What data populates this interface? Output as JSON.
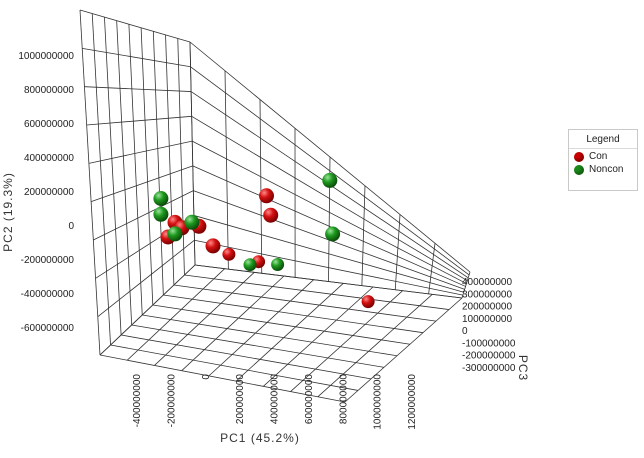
{
  "chart_data": {
    "type": "scatter",
    "title": "",
    "xlabel": "PC1 (45.2%)",
    "ylabel": "PC2 (19.3%)",
    "zlabel": "PC3",
    "grid": true,
    "legend_placement": "right",
    "legend_title": "Legend",
    "x_ticks": [
      "-400000000",
      "-200000000",
      "0",
      "200000000",
      "400000000",
      "600000000",
      "800000000",
      "1000000000",
      "1200000000"
    ],
    "y_ticks": [
      "-600000000",
      "-400000000",
      "-200000000",
      "0",
      "200000000",
      "400000000",
      "600000000",
      "800000000",
      "1000000000"
    ],
    "z_ticks": [
      "400000000",
      "300000000",
      "200000000",
      "100000000",
      "0",
      "-100000000",
      "-200000000",
      "-300000000"
    ],
    "series": [
      {
        "name": "Con",
        "color": "#cc0000",
        "points": [
          {
            "x": -350000000,
            "y": 120000000,
            "z": 150000000
          },
          {
            "x": -300000000,
            "y": 230000000,
            "z": 150000000
          },
          {
            "x": -250000000,
            "y": 200000000,
            "z": 150000000
          },
          {
            "x": -130000000,
            "y": 230000000,
            "z": 150000000
          },
          {
            "x": -30000000,
            "y": 110000000,
            "z": 150000000
          },
          {
            "x": -90000000,
            "y": -80000000,
            "z": 0
          },
          {
            "x": 60000000,
            "y": -150000000,
            "z": -50000000
          },
          {
            "x": 350000000,
            "y": 520000000,
            "z": 150000000
          },
          {
            "x": 380000000,
            "y": 390000000,
            "z": 150000000
          },
          {
            "x": 700000000,
            "y": -420000000,
            "z": -150000000
          }
        ]
      },
      {
        "name": "Noncon",
        "color": "#1a8c1a",
        "points": [
          {
            "x": -400000000,
            "y": 380000000,
            "z": 150000000
          },
          {
            "x": -400000000,
            "y": 270000000,
            "z": 150000000
          },
          {
            "x": -300000000,
            "y": 150000000,
            "z": 150000000
          },
          {
            "x": -180000000,
            "y": 250000000,
            "z": 150000000
          },
          {
            "x": 0,
            "y": -180000000,
            "z": -50000000
          },
          {
            "x": 250000000,
            "y": -100000000,
            "z": 0
          },
          {
            "x": 800000000,
            "y": 700000000,
            "z": 150000000
          },
          {
            "x": 820000000,
            "y": 330000000,
            "z": 150000000
          }
        ]
      }
    ]
  }
}
